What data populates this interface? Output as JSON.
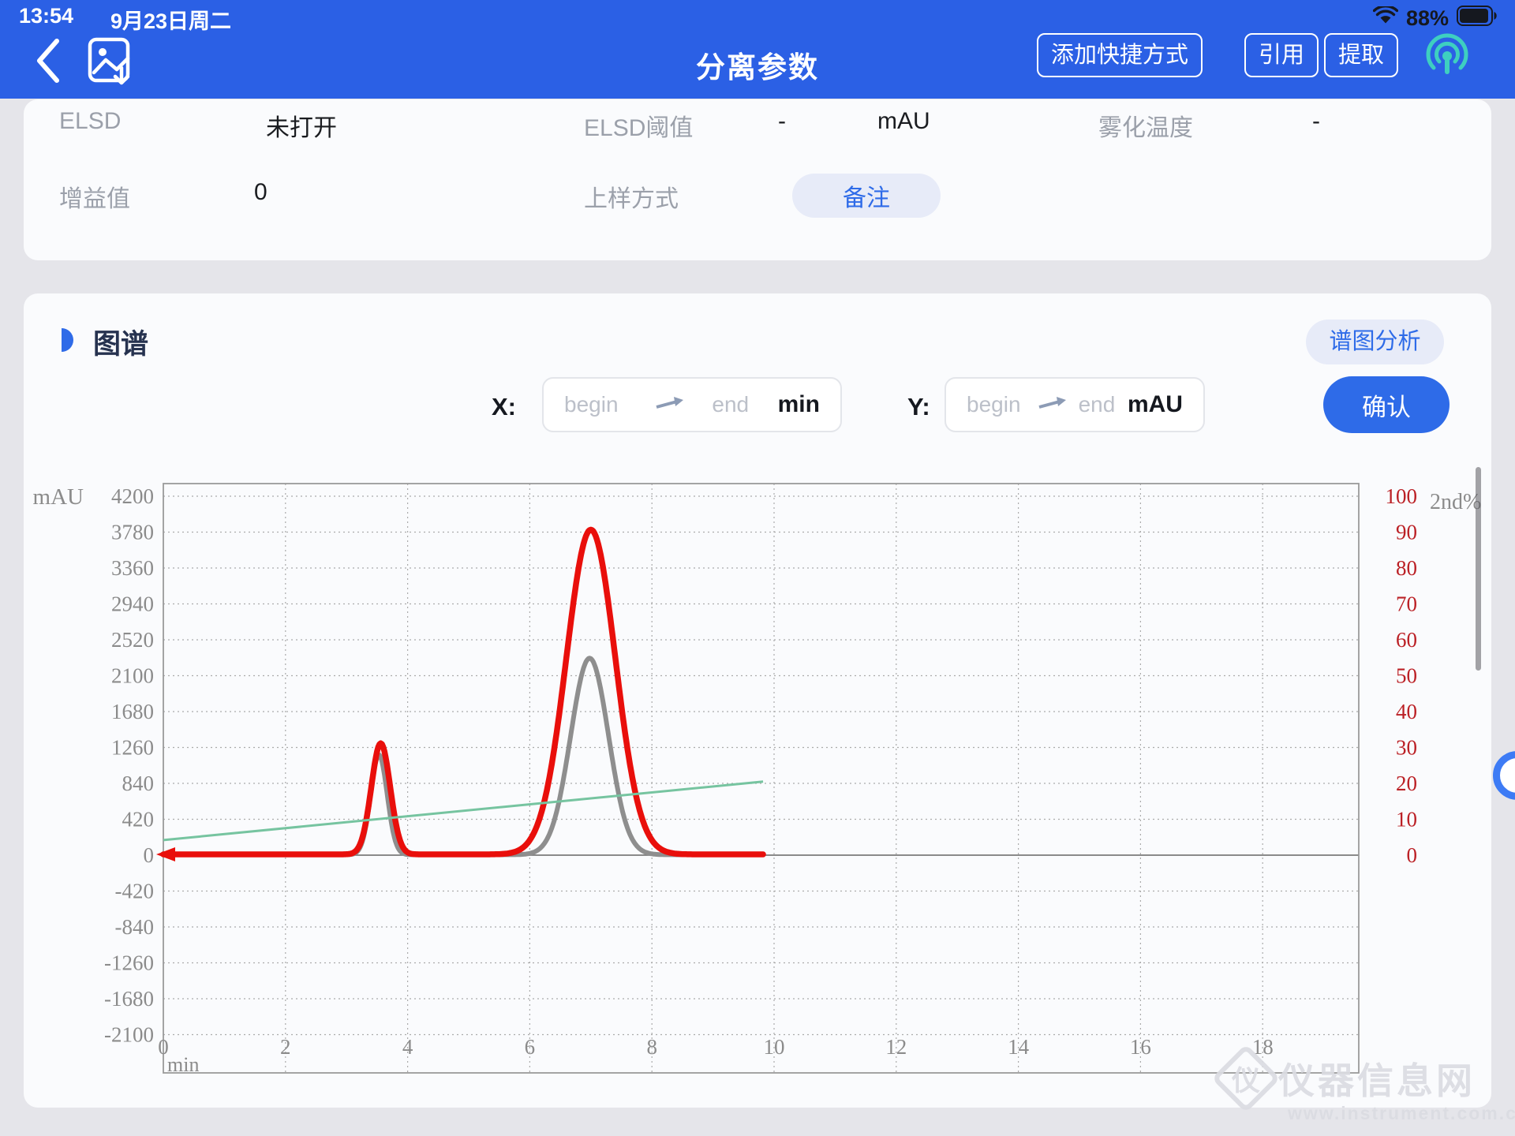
{
  "status": {
    "time": "13:54",
    "date": "9月23日周二",
    "battery": "88%"
  },
  "nav": {
    "title": "分离参数",
    "shortcut_button": "添加快捷方式",
    "cite_button": "引用",
    "extract_button": "提取"
  },
  "params": {
    "elsd_label": "ELSD",
    "elsd_value": "未打开",
    "threshold_label": "ELSD阈值",
    "threshold_value": "-",
    "threshold_unit": "mAU",
    "atomize_label": "雾化温度",
    "atomize_value": "-",
    "gain_label": "增益值",
    "gain_value": "0",
    "sampling_label": "上样方式",
    "remark_button": "备注"
  },
  "spectrum": {
    "section_title": "图谱",
    "analysis_button": "谱图分析",
    "confirm_button": "确认",
    "x_label": "X:",
    "y_label": "Y:",
    "begin_placeholder": "begin",
    "end_placeholder": "end",
    "x_unit": "min",
    "y_unit": "mAU"
  },
  "chart_data": {
    "type": "line",
    "x_axis": {
      "label": "min",
      "min": 0,
      "max": 19.57,
      "ticks": [
        0,
        2,
        4,
        6,
        8,
        10,
        12,
        14,
        16,
        18
      ]
    },
    "y_axis_left": {
      "label": "mAU",
      "tick_step": 420,
      "ticks": [
        4200,
        3780,
        3360,
        2940,
        2520,
        2100,
        1680,
        1260,
        840,
        420,
        0,
        -420,
        -840,
        -1260,
        -1680,
        -2100
      ]
    },
    "y_axis_right": {
      "label": "2nd%",
      "percent_full_scale_mau": 4200,
      "ticks": [
        100,
        90,
        80,
        70,
        60,
        50,
        40,
        30,
        20,
        10,
        0
      ]
    },
    "grid": "dotted",
    "series": [
      {
        "name": "signal-gray",
        "color": "#8E8E8E",
        "stroke_width": 6,
        "baseline_mau": 5,
        "end_min": 9.82,
        "peaks": [
          {
            "center_min": 3.53,
            "sigma_min": 0.135,
            "height_mau": 1170
          },
          {
            "center_min": 6.98,
            "sigma_min": 0.31,
            "height_mau": 2300
          }
        ]
      },
      {
        "name": "signal-red",
        "color": "#E90F0B",
        "stroke_width": 7.5,
        "baseline_mau": 9,
        "end_min": 9.82,
        "start_arrow": true,
        "peaks": [
          {
            "center_min": 3.56,
            "sigma_min": 0.155,
            "height_mau": 1300
          },
          {
            "center_min": 7.0,
            "sigma_min": 0.4,
            "height_mau": 3800
          }
        ]
      },
      {
        "name": "gradient-green",
        "color": "#76C4A0",
        "stroke_width": 3,
        "line_percent": {
          "x_min": [
            0,
            9.82
          ],
          "percent": [
            4.2,
            20.5
          ]
        }
      }
    ]
  },
  "watermark": {
    "title": "仪器信息网",
    "url": "www.instrument.com.cn",
    "logo_glyph": "仪"
  }
}
